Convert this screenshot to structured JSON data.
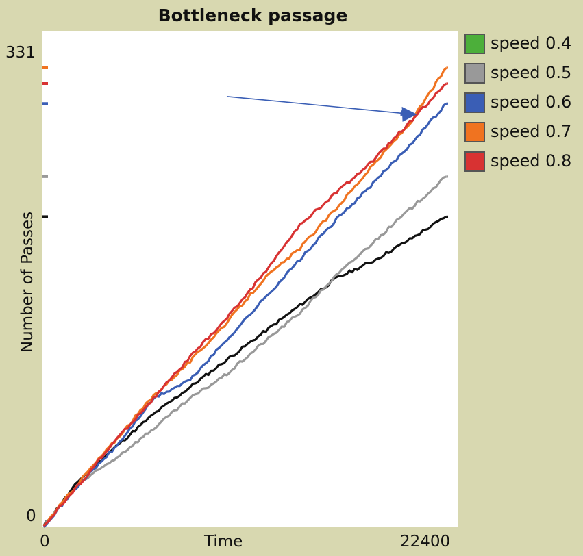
{
  "chart_data": {
    "type": "line",
    "title": "Bottleneck passage",
    "xlabel": "Time",
    "ylabel": "Number of Passes",
    "xlim": [
      0,
      22400
    ],
    "ylim": [
      0,
      331
    ],
    "x_tick_labels": [
      "0",
      "22400"
    ],
    "y_tick_labels": [
      "0",
      "331"
    ],
    "legend_position": "right",
    "grid": false,
    "series": [
      {
        "name": "speed 0.4",
        "color": "#4caf3a",
        "x": [],
        "y": []
      },
      {
        "name": "speed 0.5",
        "color": "#999999",
        "x": [
          0,
          2000,
          4000,
          6000,
          8000,
          10000,
          12000,
          14000,
          16000,
          18000,
          20000,
          22000
        ],
        "y": [
          0,
          30,
          48,
          68,
          89,
          106,
          128,
          149,
          175,
          198,
          221,
          244
        ]
      },
      {
        "name": "speed 0.6",
        "color": "#3a5eb5",
        "x": [
          0,
          2000,
          4000,
          6000,
          8000,
          10000,
          12000,
          14000,
          16000,
          18000,
          20000,
          22000
        ],
        "y": [
          0,
          30,
          56,
          89,
          102,
          130,
          158,
          186,
          214,
          239,
          266,
          295
        ]
      },
      {
        "name": "speed 0.7",
        "color": "#f07320",
        "x": [
          0,
          2000,
          4000,
          6000,
          8000,
          10000,
          12000,
          14000,
          16000,
          18000,
          20000,
          22000
        ],
        "y": [
          0,
          32,
          61,
          91,
          115,
          142,
          172,
          194,
          222,
          252,
          281,
          320
        ]
      },
      {
        "name": "speed 0.8",
        "color": "#d83232",
        "x": [
          0,
          2000,
          4000,
          6000,
          8000,
          10000,
          12000,
          14000,
          16000,
          18000,
          20000,
          22000
        ],
        "y": [
          0,
          30,
          61,
          89,
          118,
          145,
          176,
          210,
          233,
          255,
          282,
          309
        ]
      }
    ],
    "extra_line": {
      "color": "#111111",
      "x": [
        0,
        2000,
        4000,
        6000,
        8000,
        10000,
        12000,
        14000,
        16000,
        18000,
        20000,
        22000
      ],
      "y": [
        0,
        33,
        56,
        78,
        97,
        116,
        135,
        154,
        173,
        185,
        200,
        216
      ]
    },
    "annotations": [
      {
        "type": "arrow",
        "color": "#3a5eb5",
        "from": [
          10000,
          300
        ],
        "to": [
          19800,
          288
        ]
      }
    ]
  }
}
